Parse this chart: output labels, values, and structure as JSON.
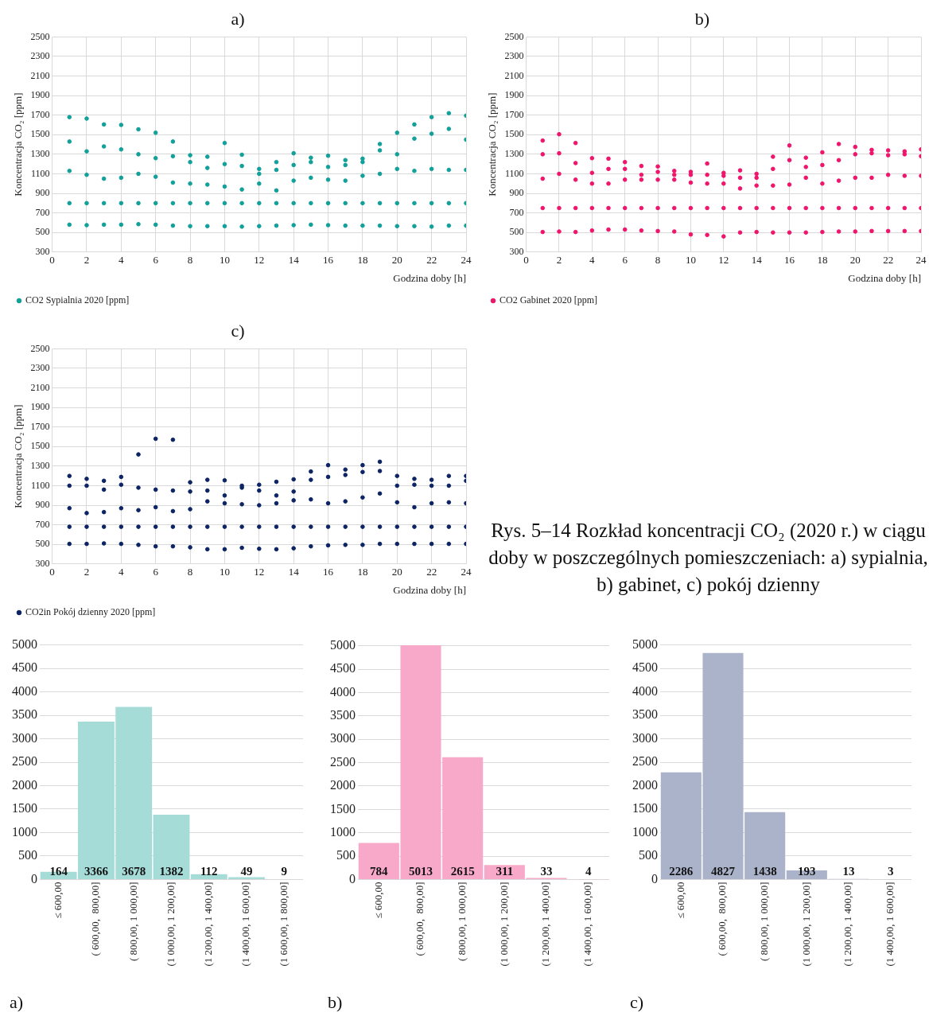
{
  "chart_data": [
    {
      "type": "scatter",
      "title": "a)",
      "ylabel": "Koncentracja CO₂ [ppm]",
      "xlabel": "Godzina doby [h]",
      "legend": "bottom left",
      "grid": true,
      "marker": "circle",
      "xlim": [
        0,
        24
      ],
      "xticks": [
        0,
        2,
        4,
        6,
        8,
        10,
        12,
        14,
        16,
        18,
        20,
        22,
        24
      ],
      "ylim": [
        300,
        2500
      ],
      "yticks": [
        300,
        500,
        700,
        900,
        1100,
        1300,
        1500,
        1700,
        1900,
        2100,
        2300,
        2500
      ],
      "x": [
        1,
        1,
        1,
        1,
        1,
        2,
        2,
        2,
        2,
        2,
        3,
        3,
        3,
        3,
        3,
        4,
        4,
        4,
        4,
        4,
        5,
        5,
        5,
        5,
        5,
        6,
        6,
        6,
        6,
        6,
        7,
        7,
        7,
        7,
        7,
        8,
        8,
        8,
        8,
        8,
        9,
        9,
        9,
        9,
        9,
        10,
        10,
        10,
        10,
        10,
        11,
        11,
        11,
        11,
        11,
        12,
        12,
        12,
        12,
        12,
        13,
        13,
        13,
        13,
        13,
        14,
        14,
        14,
        14,
        14,
        15,
        15,
        15,
        15,
        15,
        16,
        16,
        16,
        16,
        16,
        17,
        17,
        17,
        17,
        17,
        18,
        18,
        18,
        18,
        18,
        19,
        19,
        19,
        19,
        19,
        20,
        20,
        20,
        20,
        20,
        21,
        21,
        21,
        21,
        21,
        22,
        22,
        22,
        22,
        22,
        23,
        23,
        23,
        23,
        23,
        24,
        24,
        24,
        24,
        24
      ],
      "series": [
        {
          "name": "CO2 Sypialnia 2020 [ppm]",
          "color": "#12a09a",
          "values": [
            580,
            800,
            1130,
            1430,
            1680,
            575,
            800,
            1090,
            1330,
            1665,
            580,
            800,
            1050,
            1380,
            1605,
            580,
            800,
            1060,
            1350,
            1600,
            585,
            800,
            1100,
            1300,
            1555,
            580,
            800,
            1070,
            1260,
            1520,
            570,
            800,
            1010,
            1280,
            1430,
            565,
            800,
            1000,
            1220,
            1290,
            565,
            800,
            990,
            1160,
            1275,
            565,
            800,
            970,
            1200,
            1415,
            560,
            800,
            940,
            1180,
            1295,
            565,
            800,
            1000,
            1100,
            1150,
            570,
            800,
            930,
            1140,
            1220,
            575,
            800,
            1030,
            1190,
            1310,
            580,
            800,
            1060,
            1220,
            1265,
            575,
            800,
            1040,
            1170,
            1285,
            570,
            800,
            1030,
            1190,
            1240,
            570,
            800,
            1080,
            1220,
            1255,
            570,
            800,
            1100,
            1340,
            1405,
            565,
            800,
            1150,
            1300,
            1520,
            565,
            800,
            1130,
            1460,
            1605,
            560,
            800,
            1150,
            1510,
            1680,
            570,
            800,
            1140,
            1560,
            1720,
            570,
            800,
            1140,
            1450,
            1695
          ]
        }
      ]
    },
    {
      "type": "scatter",
      "title": "b)",
      "ylabel": "Koncentracja CO₂ [ppm]",
      "xlabel": "Godzina doby [h]",
      "legend": "bottom left",
      "grid": true,
      "marker": "circle",
      "xlim": [
        0,
        24
      ],
      "xticks": [
        0,
        2,
        4,
        6,
        8,
        10,
        12,
        14,
        16,
        18,
        20,
        22,
        24
      ],
      "ylim": [
        300,
        2500
      ],
      "yticks": [
        300,
        500,
        700,
        900,
        1100,
        1300,
        1500,
        1700,
        1900,
        2100,
        2300,
        2500
      ],
      "x": [
        1,
        1,
        1,
        1,
        1,
        2,
        2,
        2,
        2,
        2,
        3,
        3,
        3,
        3,
        3,
        4,
        4,
        4,
        4,
        4,
        5,
        5,
        5,
        5,
        5,
        6,
        6,
        6,
        6,
        6,
        7,
        7,
        7,
        7,
        7,
        8,
        8,
        8,
        8,
        8,
        9,
        9,
        9,
        9,
        9,
        10,
        10,
        10,
        10,
        10,
        11,
        11,
        11,
        11,
        11,
        12,
        12,
        12,
        12,
        12,
        13,
        13,
        13,
        13,
        13,
        14,
        14,
        14,
        14,
        14,
        15,
        15,
        15,
        15,
        15,
        16,
        16,
        16,
        16,
        16,
        17,
        17,
        17,
        17,
        17,
        18,
        18,
        18,
        18,
        18,
        19,
        19,
        19,
        19,
        19,
        20,
        20,
        20,
        20,
        20,
        21,
        21,
        21,
        21,
        21,
        22,
        22,
        22,
        22,
        22,
        23,
        23,
        23,
        23,
        23,
        24,
        24,
        24,
        24,
        24
      ],
      "series": [
        {
          "name": "CO2 Gabinet 2020 [ppm]",
          "color": "#f0156c",
          "values": [
            505,
            750,
            1050,
            1300,
            1440,
            510,
            750,
            1100,
            1310,
            1505,
            505,
            750,
            1040,
            1210,
            1415,
            520,
            750,
            1000,
            1110,
            1260,
            530,
            750,
            1000,
            1150,
            1255,
            530,
            750,
            1040,
            1150,
            1220,
            520,
            750,
            1040,
            1090,
            1180,
            515,
            750,
            1040,
            1120,
            1175,
            510,
            750,
            1040,
            1090,
            1130,
            480,
            750,
            1010,
            1090,
            1120,
            475,
            750,
            1000,
            1090,
            1205,
            460,
            750,
            1000,
            1080,
            1110,
            500,
            750,
            950,
            1060,
            1135,
            505,
            750,
            980,
            1060,
            1100,
            500,
            750,
            980,
            1150,
            1275,
            500,
            750,
            990,
            1240,
            1390,
            500,
            750,
            1060,
            1170,
            1265,
            505,
            750,
            1000,
            1190,
            1320,
            510,
            750,
            1030,
            1240,
            1405,
            510,
            750,
            1060,
            1300,
            1375,
            515,
            750,
            1060,
            1310,
            1345,
            515,
            750,
            1090,
            1290,
            1340,
            515,
            750,
            1080,
            1300,
            1330,
            515,
            750,
            1080,
            1280,
            1350
          ]
        }
      ]
    },
    {
      "type": "scatter",
      "title": "c)",
      "ylabel": "Koncentracja CO₂ [ppm]",
      "xlabel": "Godzina doby [h]",
      "legend": "bottom left",
      "grid": true,
      "marker": "circle",
      "xlim": [
        0,
        24
      ],
      "xticks": [
        0,
        2,
        4,
        6,
        8,
        10,
        12,
        14,
        16,
        18,
        20,
        22,
        24
      ],
      "ylim": [
        300,
        2500
      ],
      "yticks": [
        300,
        500,
        700,
        900,
        1100,
        1300,
        1500,
        1700,
        1900,
        2100,
        2300,
        2500
      ],
      "annotations": [
        "Rys. 5–14 Rozkład koncentracji CO₂ (2020 r.) w ciągu doby w poszczególnych pomieszczeniach: a) sypialnia, b) gabinet, c) pokój dzienny"
      ],
      "x": [
        1,
        1,
        1,
        1,
        1,
        2,
        2,
        2,
        2,
        2,
        3,
        3,
        3,
        3,
        3,
        4,
        4,
        4,
        4,
        4,
        5,
        5,
        5,
        5,
        5,
        6,
        6,
        6,
        6,
        6,
        7,
        7,
        7,
        7,
        7,
        8,
        8,
        8,
        8,
        8,
        9,
        9,
        9,
        9,
        9,
        10,
        10,
        10,
        10,
        10,
        11,
        11,
        11,
        11,
        11,
        12,
        12,
        12,
        12,
        12,
        13,
        13,
        13,
        13,
        13,
        14,
        14,
        14,
        14,
        14,
        15,
        15,
        15,
        15,
        15,
        16,
        16,
        16,
        16,
        16,
        17,
        17,
        17,
        17,
        17,
        18,
        18,
        18,
        18,
        18,
        19,
        19,
        19,
        19,
        19,
        20,
        20,
        20,
        20,
        20,
        21,
        21,
        21,
        21,
        21,
        22,
        22,
        22,
        22,
        22,
        23,
        23,
        23,
        23,
        23,
        24,
        24,
        24,
        24,
        24
      ],
      "series": [
        {
          "name": "CO2in Pokój dzienny 2020 [ppm]",
          "color": "#0c2463",
          "values": [
            505,
            680,
            870,
            1100,
            1200,
            505,
            680,
            820,
            1100,
            1170,
            510,
            680,
            830,
            1060,
            1150,
            505,
            680,
            870,
            1110,
            1190,
            495,
            680,
            850,
            1080,
            1420,
            480,
            680,
            880,
            1060,
            1580,
            480,
            680,
            840,
            1050,
            1570,
            470,
            680,
            860,
            1040,
            1135,
            450,
            680,
            940,
            1050,
            1160,
            450,
            680,
            920,
            1000,
            1155,
            465,
            680,
            910,
            1080,
            1100,
            455,
            680,
            900,
            1050,
            1110,
            450,
            680,
            920,
            1000,
            1140,
            460,
            680,
            950,
            1040,
            1165,
            480,
            680,
            960,
            1160,
            1245,
            490,
            680,
            920,
            1190,
            1310,
            495,
            680,
            940,
            1210,
            1265,
            495,
            680,
            980,
            1240,
            1310,
            505,
            680,
            1020,
            1250,
            1345,
            505,
            680,
            930,
            1100,
            1200,
            505,
            680,
            880,
            1110,
            1170,
            505,
            680,
            920,
            1100,
            1160,
            505,
            680,
            930,
            1100,
            1200,
            505,
            680,
            920,
            1150,
            1200
          ]
        }
      ]
    },
    {
      "type": "bar",
      "title": "a)",
      "grid": "y",
      "data_labels": true,
      "ylim": [
        0,
        5000
      ],
      "yticks": [
        0,
        500,
        1000,
        1500,
        2000,
        2500,
        3000,
        3500,
        4000,
        4500,
        5000
      ],
      "categories": [
        "≤ 600,00",
        "( 600,00,  800,00]",
        "( 800,00, 1 000,00]",
        "(1 000,00, 1 200,00]",
        "(1 200,00, 1 400,00]",
        "(1 400,00, 1 600,00]",
        "(1 600,00, 1 800,00]"
      ],
      "values": [
        164,
        3366,
        3678,
        1382,
        112,
        49,
        9
      ],
      "color": "#a6dcd8"
    },
    {
      "type": "bar",
      "title": "b)",
      "grid": "y",
      "data_labels": true,
      "ylim": [
        0,
        5020
      ],
      "yticks": [
        0,
        500,
        1000,
        1500,
        2000,
        2500,
        3000,
        3500,
        4000,
        4500,
        5000
      ],
      "categories": [
        "≤ 600,00",
        "( 600,00,  800,00]",
        "( 800,00, 1 000,00]",
        "(1 000,00, 1 200,00]",
        "(1 200,00, 1 400,00]",
        "(1 400,00, 1 600,00]"
      ],
      "values": [
        784,
        5013,
        2615,
        311,
        33,
        4
      ],
      "color": "#f8a8c8"
    },
    {
      "type": "bar",
      "title": "c)",
      "grid": "y",
      "data_labels": true,
      "ylim": [
        0,
        5000
      ],
      "yticks": [
        0,
        500,
        1000,
        1500,
        2000,
        2500,
        3000,
        3500,
        4000,
        4500,
        5000
      ],
      "categories": [
        "≤ 600,00",
        "( 600,00,  800,00]",
        "( 800,00, 1 000,00]",
        "(1 000,00, 1 200,00]",
        "(1 200,00, 1 400,00]",
        "(1 400,00, 1 600,00]"
      ],
      "values": [
        2286,
        4827,
        1438,
        193,
        13,
        3
      ],
      "color": "#aab3c9"
    }
  ]
}
